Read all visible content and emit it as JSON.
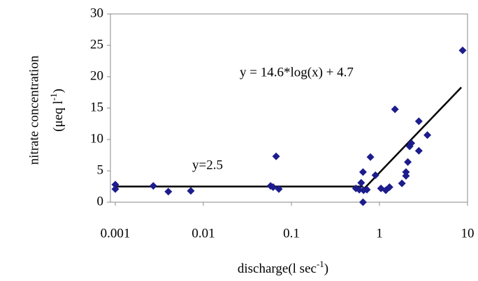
{
  "chart_data": {
    "type": "scatter",
    "xscale": "log",
    "color": "#1c1c8c",
    "x": [
      0.001,
      0.001,
      0.0027,
      0.004,
      0.0072,
      0.058,
      0.062,
      0.067,
      0.072,
      0.54,
      0.59,
      0.62,
      0.65,
      0.66,
      0.65,
      0.72,
      0.79,
      0.9,
      1.04,
      1.18,
      1.3,
      1.5,
      1.8,
      2.0,
      2.0,
      2.1,
      2.2,
      2.3,
      2.8,
      2.8,
      3.5,
      8.8
    ],
    "y": [
      2.8,
      2.1,
      2.6,
      1.7,
      1.8,
      2.6,
      2.4,
      7.3,
      2.1,
      2.2,
      2.0,
      3.1,
      4.8,
      1.9,
      0,
      2.0,
      7.2,
      4.3,
      2.2,
      1.9,
      2.4,
      14.8,
      3.0,
      4.8,
      4.2,
      6.4,
      8.9,
      9.4,
      12.9,
      8.2,
      10.7,
      24.2
    ],
    "lines": [
      {
        "color": "#000000",
        "x": [
          0.001,
          0.65
        ],
        "y": [
          2.5,
          2.5
        ]
      },
      {
        "color": "#000000",
        "x": [
          0.65,
          8.5
        ],
        "y": [
          1.97,
          18.3
        ]
      }
    ],
    "annotations": [
      "y = 14.6*log(x) + 4.7",
      "y=2.5"
    ],
    "xlim": [
      0.001,
      10
    ],
    "xticks": [
      0.001,
      0.01,
      0.1,
      1,
      10
    ],
    "ylim": [
      0,
      30
    ],
    "yticks": [
      0,
      5,
      10,
      15,
      20,
      25,
      30
    ],
    "xlabel": [
      "discharge(l sec",
      "-1",
      ")"
    ],
    "ylabel": "nitrate concentration",
    "ylabel2": [
      "(μeq l",
      "-1",
      ")"
    ],
    "grid": false
  }
}
